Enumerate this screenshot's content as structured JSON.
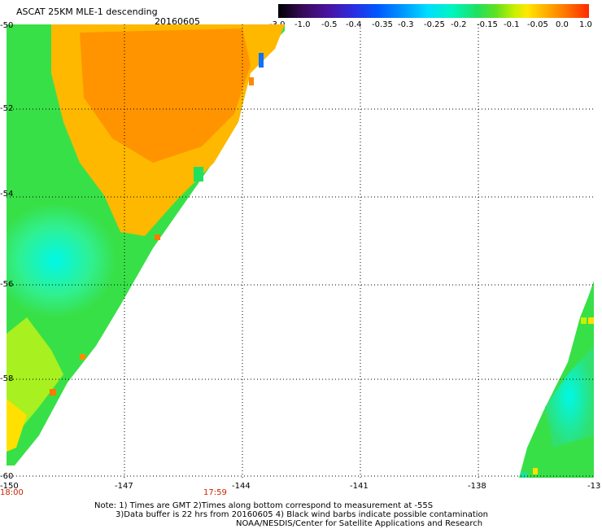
{
  "title": "ASCAT 25KM MLE-1 descending",
  "date": "20160605",
  "colorbar": {
    "labels": [
      "-3.0",
      "-1.0",
      "-0.5",
      "-0.4",
      "-0.35",
      "-0.3",
      "-0.25",
      "-0.2",
      "-0.15",
      "-0.1",
      "-0.05",
      "0.0",
      "1.0"
    ],
    "colors": [
      "#000000",
      "#4b12a0",
      "#0058ff",
      "#00ddff",
      "#20e060",
      "#ffe800",
      "#ff7a00",
      "#ff2a00"
    ]
  },
  "axes": {
    "lat_labels": [
      "-50",
      "-52",
      "-54",
      "-56",
      "-58",
      "-60"
    ],
    "lon_labels": [
      "-150",
      "-147",
      "-144",
      "-141",
      "-138",
      "-13"
    ]
  },
  "times": {
    "left": "18:00",
    "middle": "17:59"
  },
  "notes": {
    "line1": "Note: 1) Times are GMT 2)Times along bottom correspond to measurement at -55S",
    "line2": "3)Data buffer is 22 hrs from 20160605 4) Black wind barbs indicate possible contamination",
    "line3": "NOAA/NESDIS/Center for Satellite Applications and Research"
  }
}
